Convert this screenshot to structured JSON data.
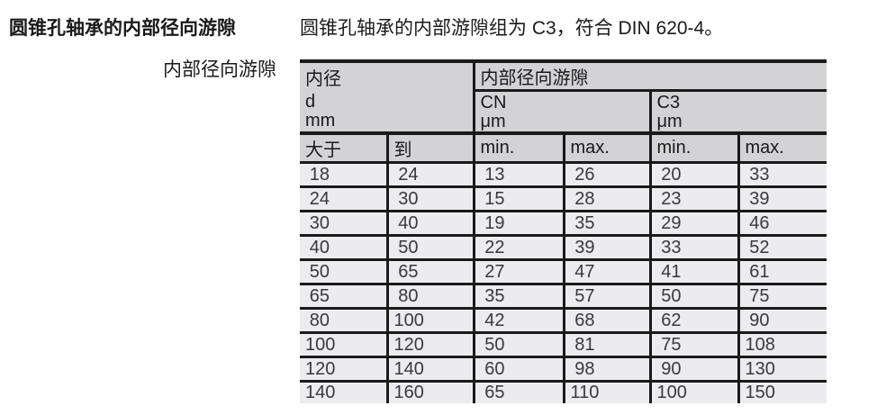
{
  "page": {
    "title": "圆锥孔轴承的内部径向游隙",
    "side_label": "内部径向游隙",
    "intro": "圆锥孔轴承的内部游隙组为 C3，符合 DIN 620-4。"
  },
  "table": {
    "header": {
      "bore_label": "内径",
      "clearance_label": "内部径向游隙",
      "bore_symbol": "d",
      "bore_unit": "mm",
      "cn_label": "CN",
      "cn_unit": "μm",
      "c3_label": "C3",
      "c3_unit": "μm",
      "columns": [
        "大于",
        "到",
        "min.",
        "max.",
        "min.",
        "max."
      ]
    },
    "rows": [
      [
        "18",
        "24",
        "13",
        "26",
        "20",
        "33"
      ],
      [
        "24",
        "30",
        "15",
        "28",
        "23",
        "39"
      ],
      [
        "30",
        "40",
        "19",
        "35",
        "29",
        "46"
      ],
      [
        "40",
        "50",
        "22",
        "39",
        "33",
        "52"
      ],
      [
        "50",
        "65",
        "27",
        "47",
        "41",
        "61"
      ],
      [
        "65",
        "80",
        "35",
        "57",
        "50",
        "75"
      ],
      [
        "80",
        "100",
        "42",
        "68",
        "62",
        "90"
      ],
      [
        "100",
        "120",
        "50",
        "81",
        "75",
        "108"
      ],
      [
        "120",
        "140",
        "60",
        "98",
        "90",
        "130"
      ],
      [
        "140",
        "160",
        "65",
        "110",
        "100",
        "150"
      ]
    ]
  },
  "colors": {
    "header_bg": "#d3d3d6",
    "row_bg": "#ececee",
    "border": "#1a1a1a",
    "text": "#1a1a1a",
    "number_text": "#38383f"
  }
}
